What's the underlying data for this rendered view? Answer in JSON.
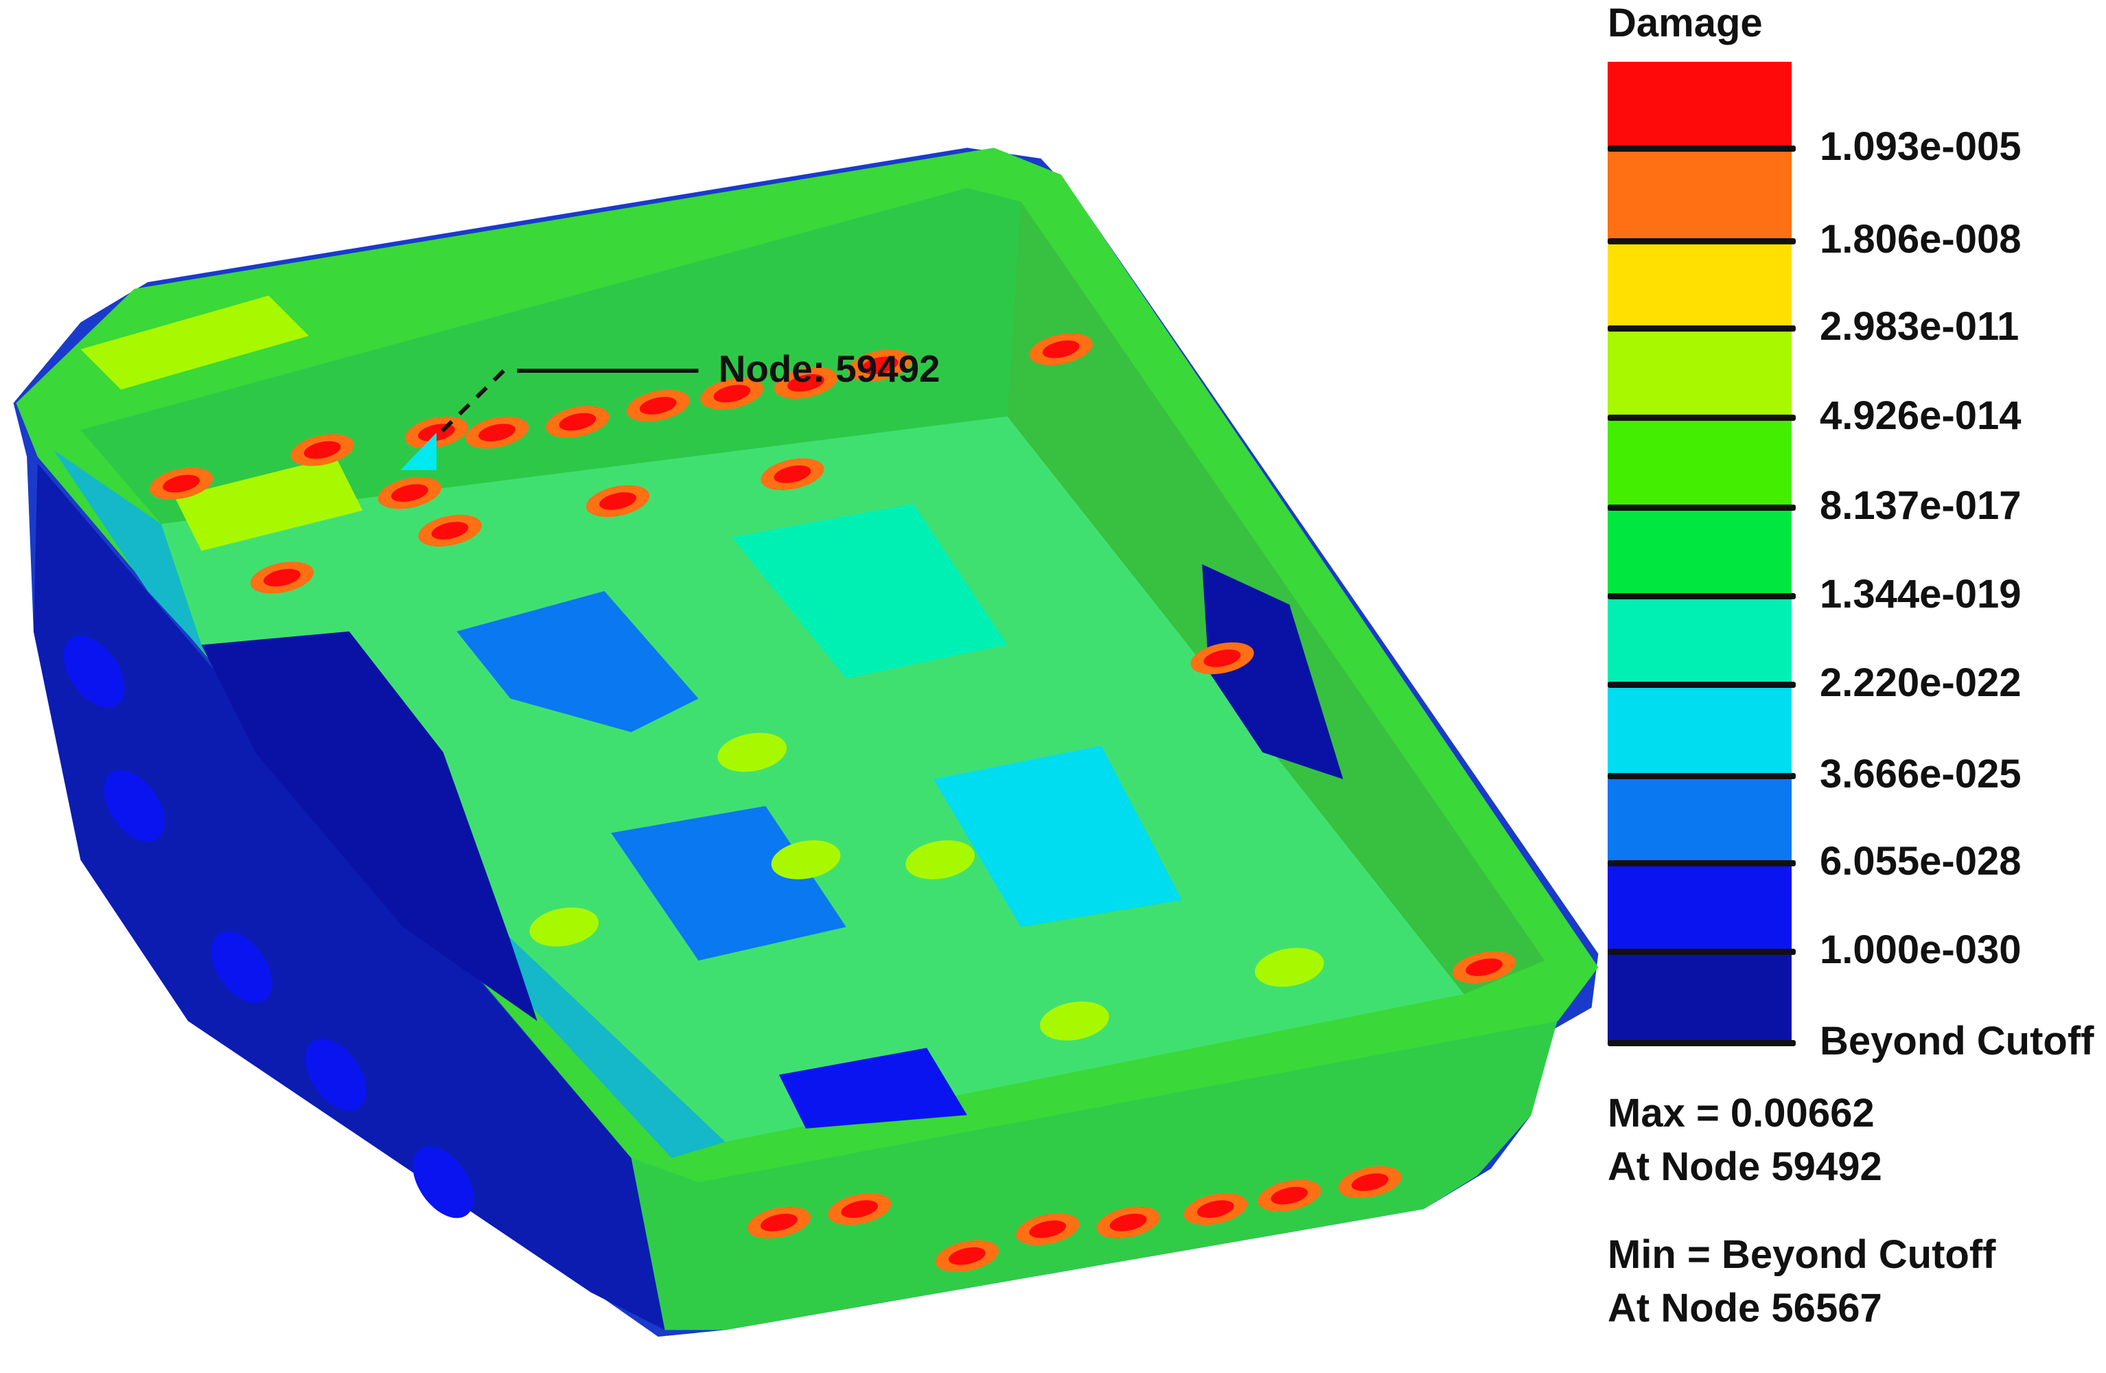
{
  "legend": {
    "title": "Damage",
    "band_colors": [
      "#ff0a0a",
      "#ff7014",
      "#ffe000",
      "#a8f800",
      "#44ee00",
      "#00e840",
      "#00f0b4",
      "#00dcf0",
      "#0a78f0",
      "#0a14f0",
      "#0a12a6"
    ],
    "levels": [
      "1.093e-005",
      "1.806e-008",
      "2.983e-011",
      "4.926e-014",
      "8.137e-017",
      "1.344e-019",
      "2.220e-022",
      "3.666e-025",
      "6.055e-028",
      "1.000e-030",
      "Beyond Cutoff"
    ]
  },
  "stats": {
    "max_line": "Max = 0.00662",
    "max_node_line": "At Node 59492",
    "min_line": "Min = Beyond Cutoff",
    "min_node_line": "At Node 56567"
  },
  "annotation": {
    "label": "Node: 59492",
    "marker_color": "#00e8f0"
  }
}
